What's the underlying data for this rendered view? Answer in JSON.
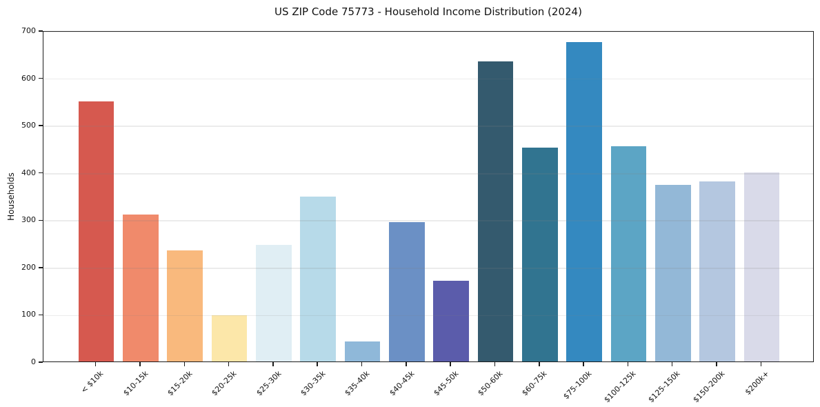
{
  "chart_data": {
    "type": "bar",
    "title": "US ZIP Code 75773 - Household Income Distribution (2024)",
    "xlabel": "",
    "ylabel": "Households",
    "categories": [
      "< $10k",
      "$10-15k",
      "$15-20k",
      "$20-25k",
      "$25-30k",
      "$30-35k",
      "$35-40k",
      "$40-45k",
      "$45-50k",
      "$50-60k",
      "$60-75k",
      "$75-100k",
      "$100-125k",
      "$125-150k",
      "$150-200k",
      "$200k+"
    ],
    "values": [
      550,
      310,
      235,
      98,
      247,
      348,
      43,
      295,
      170,
      635,
      452,
      675,
      455,
      373,
      380,
      400
    ],
    "bar_colors": [
      "#d6594f",
      "#f08a6b",
      "#f9b97d",
      "#fce7a9",
      "#e0eef4",
      "#b7dae9",
      "#8fb8d9",
      "#6b90c5",
      "#5b5cab",
      "#345a6e",
      "#317490",
      "#3489c0",
      "#5ca5c5",
      "#93b8d7",
      "#b4c7e0",
      "#d9dae9"
    ],
    "ylim": [
      0,
      700
    ],
    "yticks": [
      0,
      100,
      200,
      300,
      400,
      500,
      600,
      700
    ],
    "grid": "horizontal-only",
    "gridline_color_on_white": "#ebebeb",
    "background": "#ffffff",
    "spine_color": "#1a1a1a",
    "legend": "none"
  }
}
